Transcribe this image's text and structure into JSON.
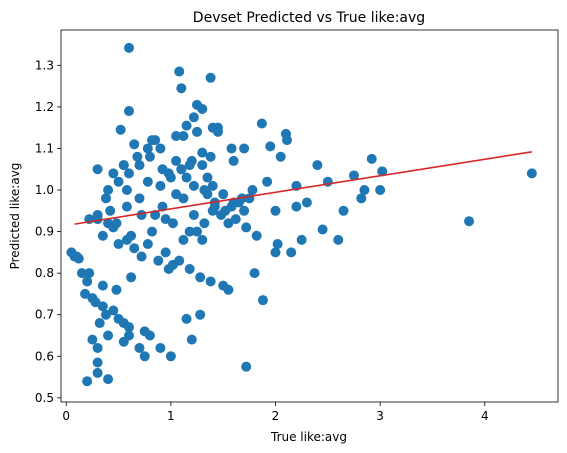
{
  "chart_data": {
    "type": "scatter",
    "title": "Devset Predicted vs True like:avg",
    "xlabel": "True like:avg",
    "ylabel": "Predicted like:avg",
    "xlim": [
      -0.05,
      4.7
    ],
    "ylim": [
      0.49,
      1.385
    ],
    "xticks": [
      0,
      1,
      2,
      3,
      4
    ],
    "xtick_labels": [
      "0",
      "1",
      "2",
      "3",
      "4"
    ],
    "yticks": [
      0.5,
      0.6,
      0.7,
      0.8,
      0.9,
      1.0,
      1.1,
      1.2,
      1.3
    ],
    "ytick_labels": [
      "0.5",
      "0.6",
      "0.7",
      "0.8",
      "0.9",
      "1.0",
      "1.1",
      "1.2",
      "1.3"
    ],
    "grid": false,
    "legend": "none",
    "colors": {
      "points": "#1f77b4",
      "fit_line": "#d62728"
    },
    "series": [
      {
        "name": "",
        "type": "scatter",
        "x": [
          0.6,
          1.08,
          1.38,
          1.1,
          1.25,
          1.3,
          1.22,
          0.6,
          1.87,
          1.15,
          1.4,
          0.52,
          1.45,
          1.12,
          0.82,
          2.1,
          2.11,
          1.95,
          1.7,
          0.3,
          0.55,
          2.92,
          3.02,
          2.4,
          2.05,
          1.6,
          1.3,
          1.1,
          2.75,
          2.85,
          2.5,
          2.2,
          2.3,
          3.0,
          0.1,
          0.12,
          0.05,
          0.22,
          0.3,
          0.4,
          0.15,
          0.2,
          0.18,
          0.25,
          0.28,
          0.35,
          0.45,
          0.38,
          0.5,
          0.55,
          0.6,
          0.75,
          0.8,
          0.32,
          0.4,
          0.25,
          0.3,
          0.55,
          0.6,
          0.75,
          0.9,
          1.2,
          1.28,
          1.72,
          0.2,
          0.3,
          0.3,
          0.4,
          1.88,
          2.25,
          2.6,
          2.82,
          2.65,
          2.2,
          2.45,
          1.55,
          2.0,
          2.0,
          1.3,
          1.5,
          0.7,
          1.0,
          1.15,
          1.8,
          3.85,
          4.45,
          0.08,
          0.22,
          0.35,
          0.48,
          0.62,
          0.98,
          0.7,
          0.9,
          1.05,
          1.4,
          1.35,
          0.42,
          0.58,
          0.85,
          0.95,
          1.65,
          1.75,
          1.18,
          0.35,
          0.5,
          0.65,
          0.72,
          0.88,
          1.02,
          1.12,
          1.25,
          1.32,
          1.48,
          1.58,
          1.68,
          1.78,
          1.92,
          0.45,
          0.55,
          0.68,
          0.78,
          0.92,
          1.05,
          1.15,
          1.22,
          1.35,
          1.42,
          1.52,
          1.62,
          1.72,
          1.82,
          2.02,
          2.15,
          0.4,
          0.5,
          0.6,
          0.7,
          0.8,
          0.9,
          1.0,
          1.1,
          1.2,
          1.3,
          1.4,
          1.5,
          1.6,
          1.7,
          0.3,
          0.45,
          0.62,
          0.78,
          0.95,
          1.08,
          1.18,
          1.28,
          1.38,
          1.55,
          0.65,
          0.85,
          1.05,
          1.25,
          1.45,
          0.48,
          0.72,
          0.92,
          1.12,
          1.32,
          0.58,
          0.82,
          1.02,
          1.22,
          1.42,
          0.38,
          0.58,
          0.78,
          0.98,
          1.18,
          1.38,
          1.58
        ],
        "y": [
          1.342,
          1.285,
          1.27,
          1.245,
          1.205,
          1.195,
          1.175,
          1.19,
          1.16,
          1.155,
          1.15,
          1.145,
          1.14,
          1.13,
          1.12,
          1.135,
          1.12,
          1.105,
          1.1,
          1.05,
          1.06,
          1.075,
          1.045,
          1.06,
          1.08,
          1.07,
          1.06,
          1.05,
          1.035,
          1.0,
          1.02,
          1.01,
          0.97,
          1.0,
          0.84,
          0.835,
          0.85,
          0.93,
          0.94,
          0.92,
          0.8,
          0.78,
          0.75,
          0.74,
          0.73,
          0.72,
          0.71,
          0.7,
          0.69,
          0.68,
          0.67,
          0.66,
          0.65,
          0.68,
          0.65,
          0.64,
          0.62,
          0.635,
          0.65,
          0.6,
          0.62,
          0.64,
          0.7,
          0.575,
          0.54,
          0.56,
          0.585,
          0.545,
          0.735,
          0.88,
          0.88,
          0.98,
          0.95,
          0.96,
          0.905,
          0.92,
          0.95,
          0.85,
          0.88,
          0.77,
          0.62,
          0.6,
          0.69,
          0.8,
          0.925,
          1.04,
          0.84,
          0.8,
          0.77,
          0.76,
          0.79,
          0.81,
          0.98,
          1.01,
          0.99,
          0.95,
          1.03,
          0.95,
          0.96,
          0.94,
          0.93,
          0.97,
          0.98,
          0.9,
          0.89,
          0.87,
          0.86,
          0.84,
          0.83,
          0.82,
          0.88,
          0.9,
          0.92,
          0.94,
          0.96,
          0.98,
          1.0,
          1.02,
          1.04,
          1.06,
          1.08,
          1.1,
          1.05,
          1.07,
          1.03,
          1.01,
          0.99,
          0.97,
          0.95,
          0.93,
          0.91,
          0.89,
          0.87,
          0.85,
          1.0,
          1.02,
          1.04,
          1.06,
          1.08,
          1.1,
          1.03,
          1.05,
          1.07,
          1.09,
          1.01,
          0.99,
          0.97,
          0.95,
          0.93,
          0.91,
          0.89,
          0.87,
          0.85,
          0.83,
          0.81,
          0.79,
          0.78,
          0.76,
          1.11,
          1.12,
          1.13,
          1.14,
          1.15,
          0.92,
          0.94,
          0.96,
          0.98,
          1.0,
          0.88,
          0.9,
          0.92,
          0.94,
          0.96,
          0.98,
          1.0,
          1.02,
          1.04,
          1.06,
          1.08,
          1.1
        ]
      },
      {
        "name": "",
        "type": "line",
        "x": [
          0.08,
          4.45
        ],
        "y": [
          0.918,
          1.092
        ]
      }
    ]
  }
}
